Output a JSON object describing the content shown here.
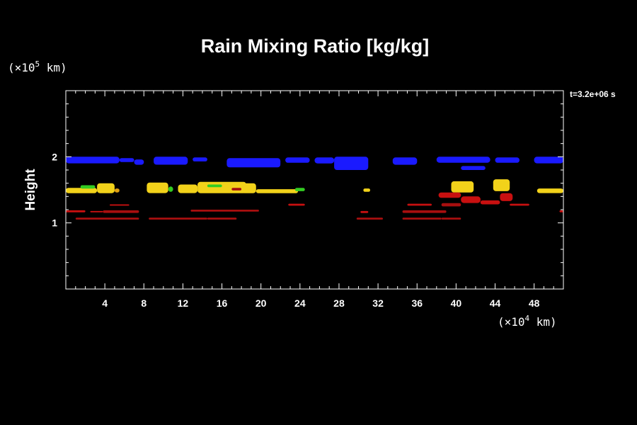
{
  "chart_data": {
    "type": "heatmap",
    "title": "Rain Mixing Ratio [kg/kg]",
    "ylabel": "Height",
    "x_unit": {
      "prefix": "(×10",
      "exp": "4",
      "suffix": " km)"
    },
    "y_unit": {
      "prefix": "(×10",
      "exp": "5",
      "suffix": " km)"
    },
    "time_label": "t=3.2e+06 s",
    "xlim": [
      0,
      51
    ],
    "ylim": [
      0,
      3
    ],
    "x_ticks": [
      4,
      8,
      12,
      16,
      20,
      24,
      28,
      32,
      36,
      40,
      44,
      48
    ],
    "y_ticks": [
      1,
      2
    ],
    "colors": {
      "blue": "#1a1aff",
      "green": "#33cc22",
      "yellow": "#f2d21a",
      "orange": "#e0a010",
      "dark_red": "#a80f0f",
      "red": "#c81010"
    },
    "cells": [
      {
        "x0": 0.0,
        "x1": 5.5,
        "y0": 1.9,
        "y1": 2.0,
        "color": "blue"
      },
      {
        "x0": 5.5,
        "x1": 7.0,
        "y0": 1.92,
        "y1": 1.98,
        "color": "blue"
      },
      {
        "x0": 7.0,
        "x1": 8.0,
        "y0": 1.88,
        "y1": 1.96,
        "color": "blue"
      },
      {
        "x0": 9.0,
        "x1": 12.5,
        "y0": 1.88,
        "y1": 2.0,
        "color": "blue"
      },
      {
        "x0": 13.0,
        "x1": 14.5,
        "y0": 1.93,
        "y1": 1.99,
        "color": "blue"
      },
      {
        "x0": 16.5,
        "x1": 22.0,
        "y0": 1.84,
        "y1": 1.98,
        "color": "blue"
      },
      {
        "x0": 22.5,
        "x1": 25.0,
        "y0": 1.91,
        "y1": 1.99,
        "color": "blue"
      },
      {
        "x0": 25.5,
        "x1": 27.5,
        "y0": 1.9,
        "y1": 1.99,
        "color": "blue"
      },
      {
        "x0": 27.5,
        "x1": 31.0,
        "y0": 1.8,
        "y1": 2.0,
        "color": "blue"
      },
      {
        "x0": 33.5,
        "x1": 36.0,
        "y0": 1.88,
        "y1": 1.99,
        "color": "blue"
      },
      {
        "x0": 38.0,
        "x1": 43.5,
        "y0": 1.91,
        "y1": 2.0,
        "color": "blue"
      },
      {
        "x0": 40.5,
        "x1": 43.0,
        "y0": 1.8,
        "y1": 1.86,
        "color": "blue"
      },
      {
        "x0": 44.0,
        "x1": 46.5,
        "y0": 1.91,
        "y1": 1.99,
        "color": "blue"
      },
      {
        "x0": 48.0,
        "x1": 51.0,
        "y0": 1.9,
        "y1": 2.0,
        "color": "blue"
      },
      {
        "x0": 0.0,
        "x1": 3.2,
        "y0": 1.45,
        "y1": 1.53,
        "color": "yellow"
      },
      {
        "x0": 3.2,
        "x1": 5.0,
        "y0": 1.45,
        "y1": 1.6,
        "color": "yellow"
      },
      {
        "x0": 1.5,
        "x1": 3.0,
        "y0": 1.52,
        "y1": 1.57,
        "color": "green"
      },
      {
        "x0": 5.0,
        "x1": 5.5,
        "y0": 1.46,
        "y1": 1.52,
        "color": "orange"
      },
      {
        "x0": 8.3,
        "x1": 10.5,
        "y0": 1.45,
        "y1": 1.61,
        "color": "yellow"
      },
      {
        "x0": 10.5,
        "x1": 11.0,
        "y0": 1.47,
        "y1": 1.55,
        "color": "green"
      },
      {
        "x0": 11.5,
        "x1": 13.5,
        "y0": 1.45,
        "y1": 1.58,
        "color": "yellow"
      },
      {
        "x0": 13.5,
        "x1": 18.5,
        "y0": 1.45,
        "y1": 1.62,
        "color": "yellow"
      },
      {
        "x0": 14.5,
        "x1": 16.0,
        "y0": 1.54,
        "y1": 1.58,
        "color": "green"
      },
      {
        "x0": 17.0,
        "x1": 18.0,
        "y0": 1.49,
        "y1": 1.53,
        "color": "dark_red"
      },
      {
        "x0": 18.0,
        "x1": 19.5,
        "y0": 1.45,
        "y1": 1.6,
        "color": "yellow"
      },
      {
        "x0": 19.5,
        "x1": 23.8,
        "y0": 1.45,
        "y1": 1.51,
        "color": "yellow"
      },
      {
        "x0": 23.5,
        "x1": 24.5,
        "y0": 1.48,
        "y1": 1.53,
        "color": "green"
      },
      {
        "x0": 30.5,
        "x1": 31.2,
        "y0": 1.47,
        "y1": 1.52,
        "color": "yellow"
      },
      {
        "x0": 39.5,
        "x1": 41.8,
        "y0": 1.46,
        "y1": 1.63,
        "color": "yellow"
      },
      {
        "x0": 43.8,
        "x1": 45.5,
        "y0": 1.48,
        "y1": 1.66,
        "color": "yellow"
      },
      {
        "x0": 48.3,
        "x1": 51.0,
        "y0": 1.45,
        "y1": 1.52,
        "color": "yellow"
      },
      {
        "x0": 4.5,
        "x1": 6.5,
        "y0": 1.26,
        "y1": 1.28,
        "color": "red"
      },
      {
        "x0": 0.0,
        "x1": 2.0,
        "y0": 1.16,
        "y1": 1.19,
        "color": "red"
      },
      {
        "x0": 2.5,
        "x1": 3.8,
        "y0": 1.16,
        "y1": 1.18,
        "color": "red"
      },
      {
        "x0": 3.8,
        "x1": 7.5,
        "y0": 1.15,
        "y1": 1.19,
        "color": "dark_red"
      },
      {
        "x0": 1.0,
        "x1": 7.5,
        "y0": 1.05,
        "y1": 1.08,
        "color": "dark_red"
      },
      {
        "x0": 8.5,
        "x1": 14.5,
        "y0": 1.05,
        "y1": 1.08,
        "color": "dark_red"
      },
      {
        "x0": 14.5,
        "x1": 17.5,
        "y0": 1.05,
        "y1": 1.08,
        "color": "dark_red"
      },
      {
        "x0": 12.8,
        "x1": 19.8,
        "y0": 1.17,
        "y1": 1.2,
        "color": "dark_red"
      },
      {
        "x0": 22.8,
        "x1": 24.5,
        "y0": 1.26,
        "y1": 1.29,
        "color": "red"
      },
      {
        "x0": 30.2,
        "x1": 31.0,
        "y0": 1.15,
        "y1": 1.18,
        "color": "red"
      },
      {
        "x0": 29.8,
        "x1": 32.5,
        "y0": 1.05,
        "y1": 1.08,
        "color": "dark_red"
      },
      {
        "x0": 35.0,
        "x1": 37.5,
        "y0": 1.26,
        "y1": 1.29,
        "color": "red"
      },
      {
        "x0": 34.5,
        "x1": 39.0,
        "y0": 1.15,
        "y1": 1.19,
        "color": "dark_red"
      },
      {
        "x0": 34.5,
        "x1": 38.5,
        "y0": 1.05,
        "y1": 1.08,
        "color": "dark_red"
      },
      {
        "x0": 38.2,
        "x1": 40.5,
        "y0": 1.38,
        "y1": 1.46,
        "color": "red"
      },
      {
        "x0": 40.5,
        "x1": 42.5,
        "y0": 1.3,
        "y1": 1.4,
        "color": "red"
      },
      {
        "x0": 42.5,
        "x1": 44.5,
        "y0": 1.28,
        "y1": 1.34,
        "color": "red"
      },
      {
        "x0": 44.5,
        "x1": 45.8,
        "y0": 1.33,
        "y1": 1.45,
        "color": "red"
      },
      {
        "x0": 38.5,
        "x1": 40.5,
        "y0": 1.25,
        "y1": 1.3,
        "color": "dark_red"
      },
      {
        "x0": 45.5,
        "x1": 47.5,
        "y0": 1.26,
        "y1": 1.29,
        "color": "red"
      },
      {
        "x0": 38.5,
        "x1": 40.5,
        "y0": 1.05,
        "y1": 1.08,
        "color": "dark_red"
      },
      {
        "x0": 50.6,
        "x1": 51.0,
        "y0": 1.16,
        "y1": 1.19,
        "color": "red"
      }
    ]
  }
}
